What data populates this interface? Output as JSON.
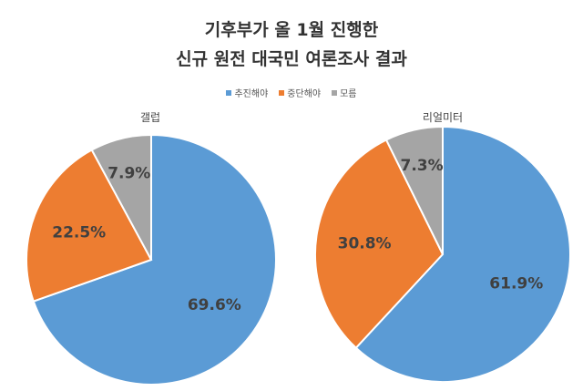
{
  "chart_data": {
    "type": "pie",
    "title_lines": [
      "기후부가 올 1월 진행한",
      "신규 원전 대국민 여론조사 결과"
    ],
    "legend": [
      {
        "name": "추진해야",
        "color": "#5B9BD5"
      },
      {
        "name": "중단해야",
        "color": "#ED7D31"
      },
      {
        "name": "모름",
        "color": "#A5A5A5"
      }
    ],
    "charts": [
      {
        "title": "갤럽",
        "values": [
          69.6,
          22.5,
          7.9
        ],
        "labels": [
          "69.6%",
          "22.5%",
          "7.9%"
        ]
      },
      {
        "title": "리얼미터",
        "values": [
          61.9,
          30.8,
          7.3
        ],
        "labels": [
          "61.9%",
          "30.8%",
          "7.3%"
        ]
      }
    ]
  }
}
